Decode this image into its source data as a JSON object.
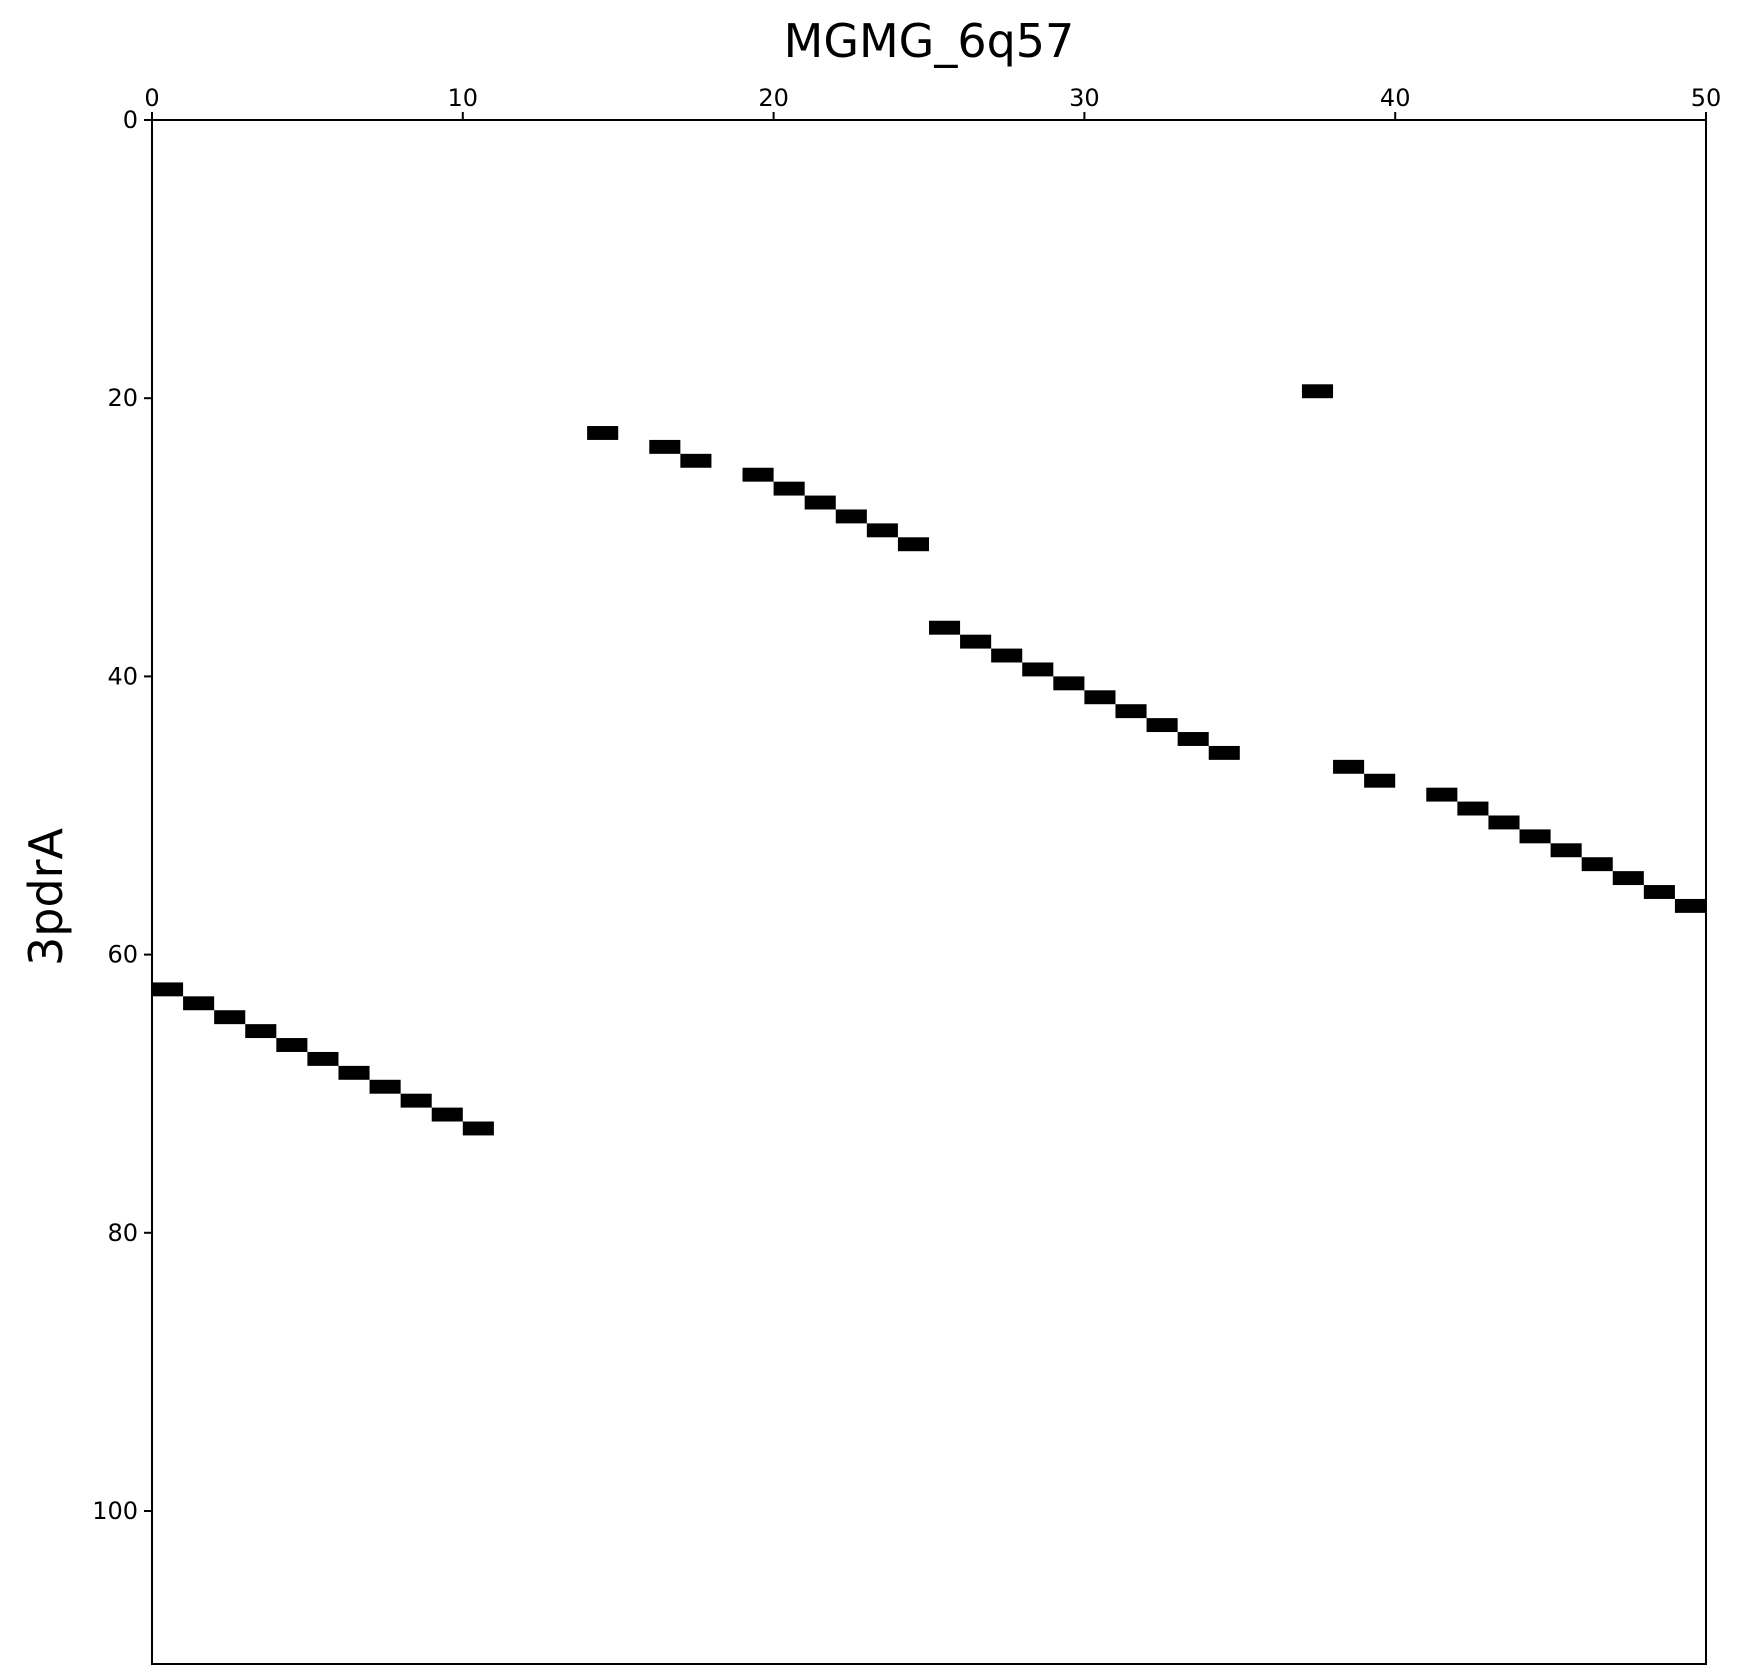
{
  "chart_data": {
    "type": "heatmap",
    "title": "MGMG_6q57",
    "xlabel": "",
    "ylabel": "3pdrA",
    "x_axis_position": "top",
    "y_inverted": true,
    "xlim": [
      0,
      50
    ],
    "ylim": [
      0,
      111
    ],
    "x_ticks": [
      "0",
      "10",
      "20",
      "30",
      "40",
      "50"
    ],
    "y_ticks": [
      "0",
      "20",
      "40",
      "60",
      "80",
      "100"
    ],
    "grid": false,
    "legend": "none",
    "cell_color": "#000000",
    "background_color": "#ffffff",
    "cells": [
      {
        "x": 0,
        "y": 62
      },
      {
        "x": 1,
        "y": 63
      },
      {
        "x": 2,
        "y": 64
      },
      {
        "x": 3,
        "y": 65
      },
      {
        "x": 4,
        "y": 66
      },
      {
        "x": 5,
        "y": 67
      },
      {
        "x": 6,
        "y": 68
      },
      {
        "x": 7,
        "y": 69
      },
      {
        "x": 8,
        "y": 70
      },
      {
        "x": 9,
        "y": 71
      },
      {
        "x": 10,
        "y": 72
      },
      {
        "x": 14,
        "y": 22
      },
      {
        "x": 16,
        "y": 23
      },
      {
        "x": 17,
        "y": 24
      },
      {
        "x": 19,
        "y": 25
      },
      {
        "x": 20,
        "y": 26
      },
      {
        "x": 21,
        "y": 27
      },
      {
        "x": 22,
        "y": 28
      },
      {
        "x": 23,
        "y": 29
      },
      {
        "x": 24,
        "y": 30
      },
      {
        "x": 25,
        "y": 36
      },
      {
        "x": 26,
        "y": 37
      },
      {
        "x": 27,
        "y": 38
      },
      {
        "x": 28,
        "y": 39
      },
      {
        "x": 29,
        "y": 40
      },
      {
        "x": 30,
        "y": 41
      },
      {
        "x": 31,
        "y": 42
      },
      {
        "x": 32,
        "y": 43
      },
      {
        "x": 33,
        "y": 44
      },
      {
        "x": 34,
        "y": 45
      },
      {
        "x": 37,
        "y": 19
      },
      {
        "x": 38,
        "y": 46
      },
      {
        "x": 39,
        "y": 47
      },
      {
        "x": 41,
        "y": 48
      },
      {
        "x": 42,
        "y": 49
      },
      {
        "x": 43,
        "y": 50
      },
      {
        "x": 44,
        "y": 51
      },
      {
        "x": 45,
        "y": 52
      },
      {
        "x": 46,
        "y": 53
      },
      {
        "x": 47,
        "y": 54
      },
      {
        "x": 48,
        "y": 55
      },
      {
        "x": 49,
        "y": 56
      }
    ]
  }
}
